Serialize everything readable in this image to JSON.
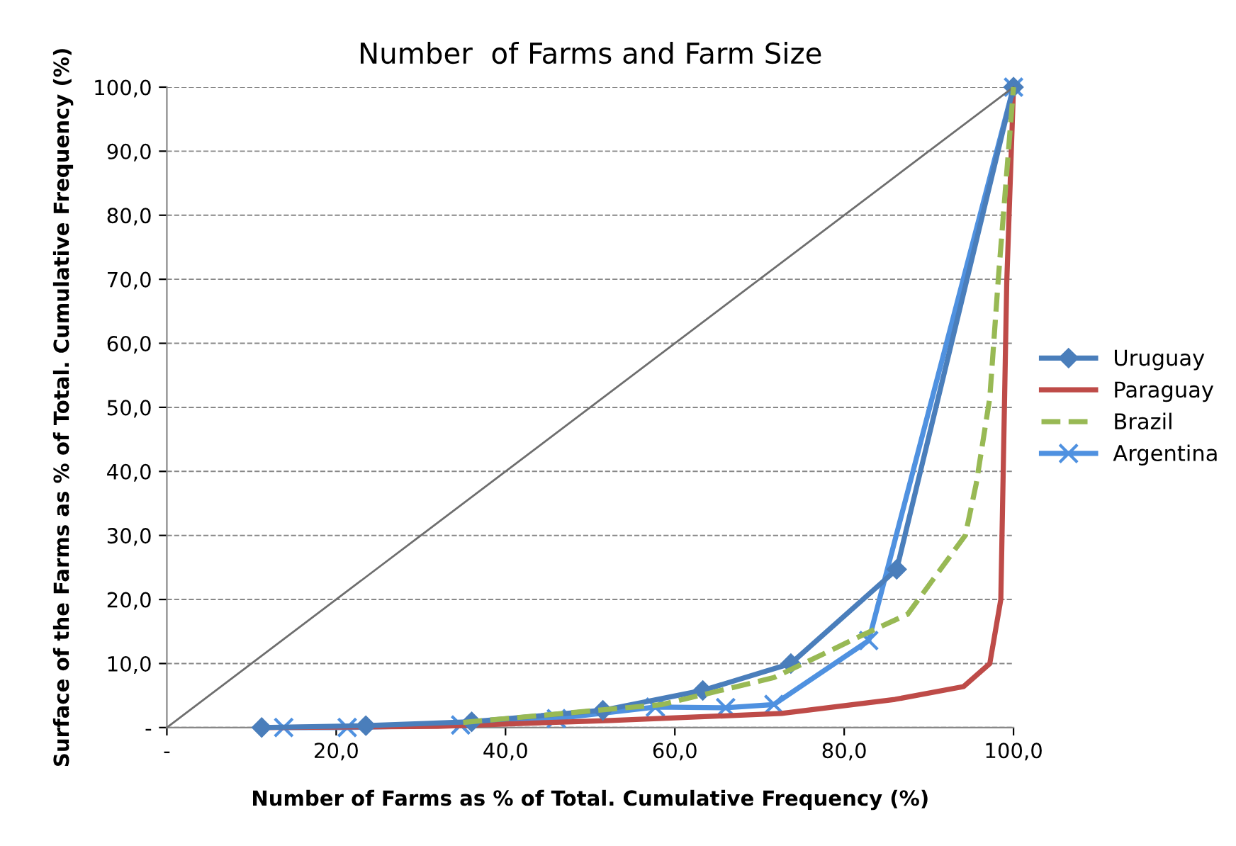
{
  "chart_data": {
    "type": "line",
    "title": "Number  of Farms and Farm Size",
    "xlabel": "Number of Farms as % of Total. Cumulative Frequency (%)",
    "ylabel": "Surface of the Farms as % of Total. Cumulative Frequency (%)",
    "xlim": [
      0,
      100
    ],
    "ylim": [
      0,
      100
    ],
    "xticks": [
      {
        "value": 0,
        "label": "-"
      },
      {
        "value": 20,
        "label": "20,0"
      },
      {
        "value": 40,
        "label": "40,0"
      },
      {
        "value": 60,
        "label": "60,0"
      },
      {
        "value": 80,
        "label": "80,0"
      },
      {
        "value": 100,
        "label": "100,0"
      }
    ],
    "yticks": [
      {
        "value": 0,
        "label": "-"
      },
      {
        "value": 10,
        "label": "10,0"
      },
      {
        "value": 20,
        "label": "20,0"
      },
      {
        "value": 30,
        "label": "30,0"
      },
      {
        "value": 40,
        "label": "40,0"
      },
      {
        "value": 50,
        "label": "50,0"
      },
      {
        "value": 60,
        "label": "60,0"
      },
      {
        "value": 70,
        "label": "70,0"
      },
      {
        "value": 80,
        "label": "80,0"
      },
      {
        "value": 90,
        "label": "90,0"
      },
      {
        "value": 100,
        "label": "100,0"
      }
    ],
    "grid": "y",
    "legend": "right",
    "series": [
      {
        "color": "#6e6e6e",
        "marker": "none",
        "line_style": "solid",
        "x": [
          0,
          100
        ],
        "values": [
          0,
          100
        ]
      },
      {
        "name": "Uruguay",
        "color": "#4a7ebb",
        "marker": "diamond",
        "line_style": "solid",
        "x": [
          11.2,
          23.5,
          36.0,
          51.5,
          63.3,
          73.7,
          86.2,
          100
        ],
        "values": [
          0,
          0.3,
          0.9,
          2.7,
          5.8,
          10,
          24.7,
          100
        ]
      },
      {
        "name": "Paraguay",
        "color": "#be4b48",
        "marker": "none",
        "line_style": "solid",
        "x": [
          11.2,
          32,
          52.4,
          72.6,
          86,
          94.1,
          97.2,
          98.5,
          99.2,
          100
        ],
        "values": [
          0,
          0.2,
          1.1,
          2.2,
          4.4,
          6.4,
          10,
          20,
          69.5,
          100
        ]
      },
      {
        "name": "Brazil",
        "color": "#98b954",
        "marker": "none",
        "line_style": "dashed",
        "x": [
          35,
          58.5,
          71.7,
          82.9,
          87.5,
          94.3,
          95.6,
          97.2,
          98.2,
          100
        ],
        "values": [
          0.8,
          3.6,
          7.8,
          14.9,
          17.7,
          30,
          38.1,
          51.5,
          70,
          100
        ]
      },
      {
        "name": "Argentina",
        "color": "#4f91e0",
        "marker": "cross",
        "line_style": "solid",
        "x": [
          13.8,
          21.3,
          34.7,
          46,
          57.7,
          66,
          71.7,
          82.9,
          100
        ],
        "values": [
          0,
          0,
          0.4,
          1.4,
          3.2,
          3.1,
          3.6,
          13.6,
          100
        ]
      }
    ]
  }
}
